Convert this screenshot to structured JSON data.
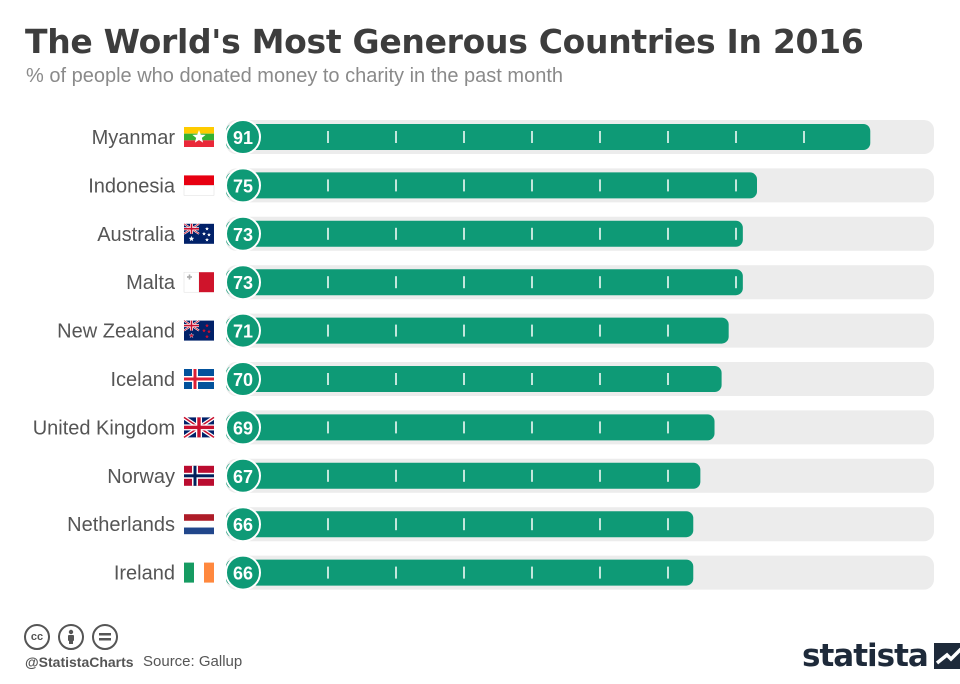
{
  "title": "The World's Most Generous Countries In 2016",
  "subtitle": "% of people who donated money to charity in the past month",
  "footer": {
    "handle": "@StatistaCharts",
    "source": "Source: Gallup",
    "brand": "statista"
  },
  "colors": {
    "bar": "#0e9a76",
    "track": "#ececec",
    "text": "#3d3d3d",
    "label": "#555555"
  },
  "chart_data": {
    "type": "bar",
    "orientation": "horizontal",
    "title": "The World's Most Generous Countries In 2016",
    "subtitle": "% of people who donated money to charity in the past month",
    "categories": [
      "Myanmar",
      "Indonesia",
      "Australia",
      "Malta",
      "New Zealand",
      "Iceland",
      "United Kingdom",
      "Norway",
      "Netherlands",
      "Ireland"
    ],
    "values": [
      91,
      75,
      73,
      73,
      71,
      70,
      69,
      67,
      66,
      66
    ],
    "flags": [
      "myanmar-flag",
      "indonesia-flag",
      "australia-flag",
      "malta-flag",
      "new-zealand-flag",
      "iceland-flag",
      "united-kingdom-flag",
      "norway-flag",
      "netherlands-flag",
      "ireland-flag"
    ],
    "xlim": [
      0,
      100
    ],
    "data_labels": true
  }
}
